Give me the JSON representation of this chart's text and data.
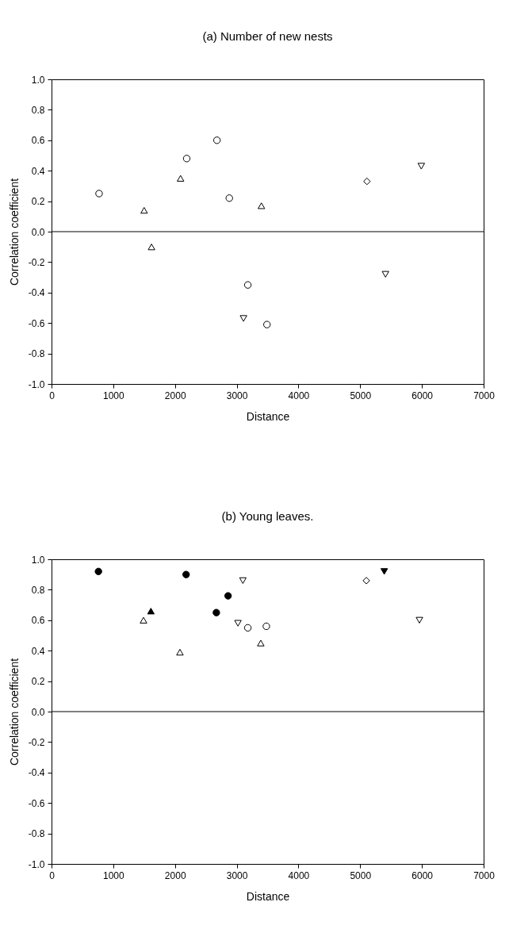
{
  "chart_data": [
    {
      "type": "scatter",
      "title": "(a) Number of new nests",
      "xlabel": "Distance",
      "ylabel": "Correlation coefficient",
      "xlim": [
        0,
        7000
      ],
      "ylim": [
        -1.0,
        1.0
      ],
      "xticks": [
        0,
        1000,
        2000,
        3000,
        4000,
        5000,
        6000,
        7000
      ],
      "yticks": [
        {
          "value": -1,
          "label": "-1.0"
        },
        -0.8,
        -0.6,
        -0.4,
        -0.2,
        {
          "value": 0,
          "label": "0.0"
        },
        0.2,
        0.4,
        0.6,
        0.8,
        {
          "value": 1,
          "label": "1.0"
        }
      ],
      "grid": false,
      "ref_lines": [
        {
          "axis": "y",
          "value": 0,
          "color": "#000000"
        }
      ],
      "series": [
        {
          "color": "#ffffff",
          "marker": "circle",
          "x": [
            770,
            2190,
            2680,
            2880,
            3180,
            3490
          ],
          "values": [
            0.25,
            0.48,
            0.6,
            0.22,
            -0.35,
            -0.61
          ]
        },
        {
          "color": "#ffffff",
          "marker": "triangle",
          "x": [
            1500,
            1620,
            2090,
            3400
          ],
          "values": [
            0.14,
            -0.1,
            0.35,
            0.17
          ]
        },
        {
          "color": "#ffffff",
          "marker": "triangle-down",
          "x": [
            3110,
            5410,
            5990
          ],
          "values": [
            -0.57,
            -0.28,
            0.43
          ]
        },
        {
          "color": "#ffffff",
          "marker": "diamond",
          "x": [
            5110
          ],
          "values": [
            0.33
          ]
        }
      ]
    },
    {
      "type": "scatter",
      "title": "(b) Young leaves.",
      "xlabel": "Distance",
      "ylabel": "Correlation coefficient",
      "xlim": [
        0,
        7000
      ],
      "ylim": [
        -1.0,
        1.0
      ],
      "xticks": [
        0,
        1000,
        2000,
        3000,
        4000,
        5000,
        6000,
        7000
      ],
      "yticks": [
        {
          "value": -1,
          "label": "-1.0"
        },
        -0.8,
        -0.6,
        -0.4,
        -0.2,
        {
          "value": 0,
          "label": "0.0"
        },
        0.2,
        0.4,
        0.6,
        0.8,
        {
          "value": 1,
          "label": "1.0"
        }
      ],
      "grid": false,
      "ref_lines": [
        {
          "axis": "y",
          "value": 0,
          "color": "#000000"
        }
      ],
      "series": [
        {
          "color": "#000000",
          "marker": "circle",
          "x": [
            760,
            2180,
            2670,
            2860
          ],
          "values": [
            0.92,
            0.9,
            0.65,
            0.76
          ]
        },
        {
          "color": "#000000",
          "marker": "triangle",
          "x": [
            1610
          ],
          "values": [
            0.66
          ]
        },
        {
          "color": "#000000",
          "marker": "triangle-down",
          "x": [
            5390
          ],
          "values": [
            0.92
          ]
        },
        {
          "color": "#ffffff",
          "marker": "triangle",
          "x": [
            1490,
            2080,
            3390
          ],
          "values": [
            0.6,
            0.39,
            0.45
          ]
        },
        {
          "color": "#ffffff",
          "marker": "triangle-down",
          "x": [
            3100,
            3020,
            5960
          ],
          "values": [
            0.86,
            0.58,
            0.6
          ]
        },
        {
          "color": "#ffffff",
          "marker": "circle",
          "x": [
            3180,
            3480
          ],
          "values": [
            0.55,
            0.56
          ]
        },
        {
          "color": "#ffffff",
          "marker": "diamond",
          "x": [
            5100
          ],
          "values": [
            0.86
          ]
        }
      ]
    }
  ]
}
